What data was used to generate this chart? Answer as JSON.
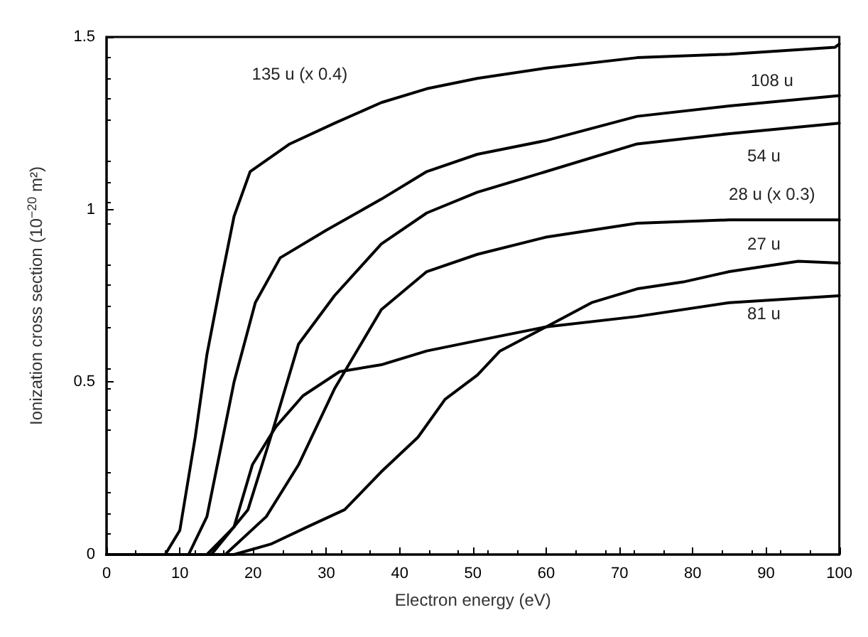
{
  "chart_data": {
    "type": "line",
    "xlabel": "Electron energy (eV)",
    "ylabel": "Ionization cross section (10$^{−20}$ m²)",
    "xlim": [
      0,
      100
    ],
    "ylim": [
      0,
      1.5
    ],
    "xticks": [
      0,
      10,
      20,
      30,
      40,
      50,
      60,
      70,
      80,
      90,
      100
    ],
    "yticks": [
      0,
      0.5,
      1,
      1.5
    ],
    "grid": false,
    "marker": "none",
    "line_style": "solid",
    "series": [
      {
        "color": "#000000",
        "x": [
          0,
          8,
          10,
          12.1,
          13.7,
          15.6,
          17.4,
          19.6,
          25,
          31.1,
          37.5,
          43.7,
          50.6,
          60,
          72.4,
          85,
          99.4,
          100
        ],
        "values": [
          0,
          0,
          0.07,
          0.34,
          0.58,
          0.79,
          0.98,
          1.11,
          1.19,
          1.25,
          1.31,
          1.35,
          1.38,
          1.41,
          1.44,
          1.45,
          1.47,
          1.48
        ]
      },
      {
        "color": "#000000",
        "x": [
          0,
          11.2,
          13.7,
          17.4,
          20.3,
          23.7,
          30,
          37.5,
          43.7,
          50.6,
          60,
          72.4,
          85,
          100
        ],
        "values": [
          0,
          0,
          0.11,
          0.5,
          0.73,
          0.86,
          0.94,
          1.03,
          1.11,
          1.16,
          1.2,
          1.27,
          1.3,
          1.33
        ]
      },
      {
        "color": "#000000",
        "x": [
          0,
          14.3,
          19.3,
          22.4,
          26.2,
          31.1,
          37.5,
          43.7,
          50.6,
          60,
          72.4,
          85,
          100
        ],
        "values": [
          0,
          0,
          0.13,
          0.34,
          0.61,
          0.75,
          0.9,
          0.99,
          1.05,
          1.11,
          1.19,
          1.22,
          1.25
        ]
      },
      {
        "color": "#000000",
        "x": [
          0,
          16.2,
          21.8,
          26.2,
          31.1,
          37.5,
          43.7,
          50.6,
          60,
          72.4,
          85,
          100
        ],
        "values": [
          0,
          0,
          0.11,
          0.26,
          0.48,
          0.71,
          0.82,
          0.87,
          0.92,
          0.96,
          0.97,
          0.97
        ]
      },
      {
        "color": "#000000",
        "x": [
          0,
          13.7,
          17.4,
          19.9,
          23.1,
          26.8,
          31.8,
          37.5,
          43.7,
          50.6,
          60,
          72.4,
          85,
          100
        ],
        "values": [
          0,
          0,
          0.08,
          0.26,
          0.37,
          0.46,
          0.53,
          0.55,
          0.59,
          0.62,
          0.66,
          0.69,
          0.73,
          0.75
        ]
      },
      {
        "color": "#000000",
        "x": [
          0,
          17.4,
          22.4,
          27.4,
          32.5,
          37.5,
          42.5,
          46.2,
          50.6,
          53.7,
          60,
          66.2,
          72.4,
          78.7,
          85,
          94.4,
          100
        ],
        "values": [
          0,
          0,
          0.03,
          0.08,
          0.13,
          0.24,
          0.34,
          0.45,
          0.52,
          0.59,
          0.66,
          0.73,
          0.77,
          0.79,
          0.82,
          0.85,
          0.845
        ]
      }
    ],
    "annotations": [
      "135 u (x 0.4)",
      "108 u",
      "54 u",
      "28 u (x 0.3)",
      "27 u",
      "81 u"
    ]
  }
}
